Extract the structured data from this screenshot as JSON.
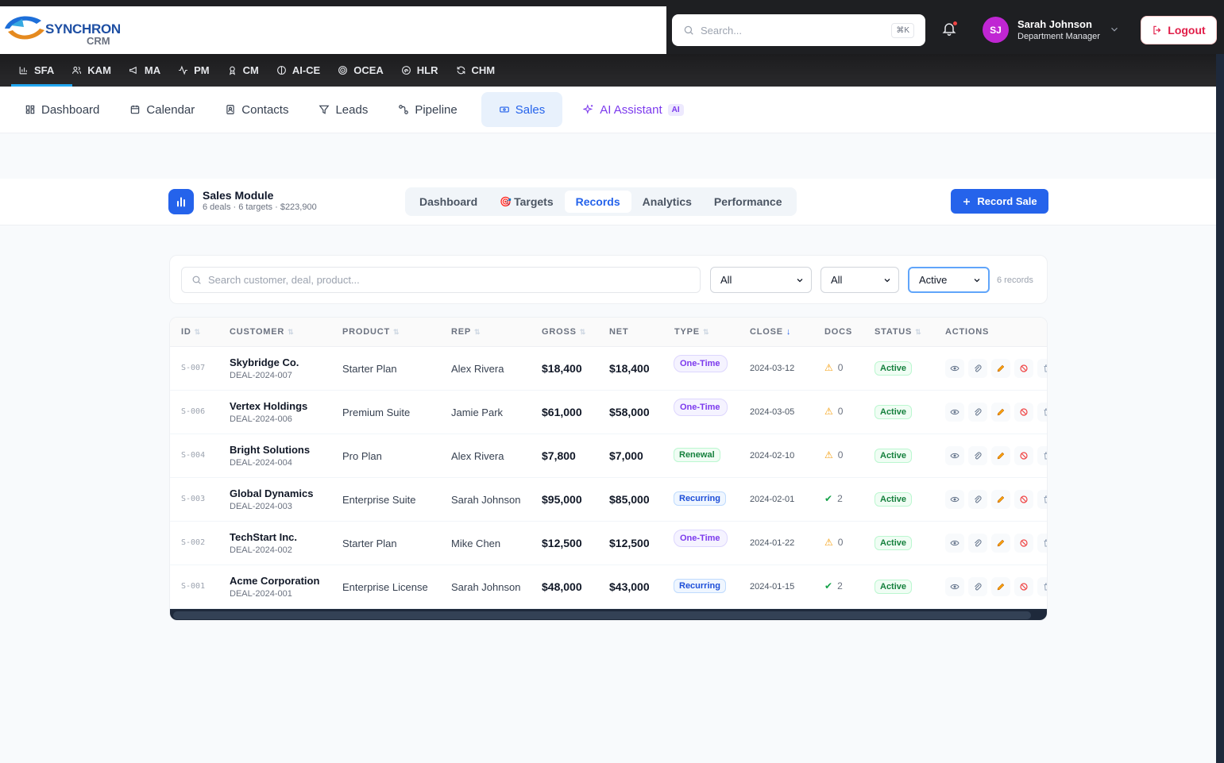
{
  "brand": {
    "name_top": "SYNCHRON",
    "name_bottom": "CRM"
  },
  "header": {
    "search_placeholder": "Search...",
    "search_shortcut": "⌘K",
    "user": {
      "initials": "SJ",
      "name": "Sarah Johnson",
      "role": "Department Manager"
    },
    "logout_label": "Logout"
  },
  "modules": [
    {
      "label": "SFA",
      "icon": "bar-chart-icon",
      "active": true
    },
    {
      "label": "KAM",
      "icon": "users-icon"
    },
    {
      "label": "MA",
      "icon": "megaphone-icon"
    },
    {
      "label": "PM",
      "icon": "activity-icon"
    },
    {
      "label": "CM",
      "icon": "award-icon"
    },
    {
      "label": "AI-CE",
      "icon": "brain-icon"
    },
    {
      "label": "OCEA",
      "icon": "target-icon"
    },
    {
      "label": "HLR",
      "icon": "fingerprint-icon"
    },
    {
      "label": "CHM",
      "icon": "refresh-icon"
    }
  ],
  "subnav": [
    {
      "label": "Dashboard",
      "icon": "grid-icon"
    },
    {
      "label": "Calendar",
      "icon": "calendar-icon"
    },
    {
      "label": "Contacts",
      "icon": "contact-icon"
    },
    {
      "label": "Leads",
      "icon": "filter-icon"
    },
    {
      "label": "Pipeline",
      "icon": "pipeline-icon"
    },
    {
      "label": "Sales",
      "icon": "ticket-icon",
      "active": true
    },
    {
      "label": "AI Assistant",
      "icon": "sparkles-icon",
      "badge": "AI"
    }
  ],
  "module": {
    "title": "Sales Module",
    "summary": "6 deals · 6 targets · $223,900",
    "tabs": [
      {
        "label": "Dashboard"
      },
      {
        "label": "Targets",
        "emoji": "🎯"
      },
      {
        "label": "Records",
        "active": true
      },
      {
        "label": "Analytics"
      },
      {
        "label": "Performance"
      }
    ],
    "record_button": "Record Sale"
  },
  "filters": {
    "search_placeholder": "Search customer, deal, product...",
    "select1": "All",
    "select2": "All",
    "select3": "Active",
    "count": "6 records"
  },
  "table": {
    "headers": [
      "ID",
      "CUSTOMER",
      "PRODUCT",
      "REP",
      "GROSS",
      "NET",
      "TYPE",
      "CLOSE",
      "DOCS",
      "STATUS",
      "ACTIONS"
    ],
    "rows": [
      {
        "id": "S-007",
        "customer": "Skybridge Co.",
        "deal": "DEAL-2024-007",
        "product": "Starter Plan",
        "rep": "Alex Rivera",
        "gross": "$18,400",
        "net": "$18,400",
        "type": "One-Time",
        "close": "2024-03-12",
        "docs_icon": "⚠",
        "docs": "0",
        "status": "Active"
      },
      {
        "id": "S-006",
        "customer": "Vertex Holdings",
        "deal": "DEAL-2024-006",
        "product": "Premium Suite",
        "rep": "Jamie Park",
        "gross": "$61,000",
        "net": "$58,000",
        "type": "One-Time",
        "close": "2024-03-05",
        "docs_icon": "⚠",
        "docs": "0",
        "status": "Active"
      },
      {
        "id": "S-004",
        "customer": "Bright Solutions",
        "deal": "DEAL-2024-004",
        "product": "Pro Plan",
        "rep": "Alex Rivera",
        "gross": "$7,800",
        "net": "$7,000",
        "type": "Renewal",
        "close": "2024-02-10",
        "docs_icon": "⚠",
        "docs": "0",
        "status": "Active"
      },
      {
        "id": "S-003",
        "customer": "Global Dynamics",
        "deal": "DEAL-2024-003",
        "product": "Enterprise Suite",
        "rep": "Sarah Johnson",
        "gross": "$95,000",
        "net": "$85,000",
        "type": "Recurring",
        "close": "2024-02-01",
        "docs_icon": "✔",
        "docs": "2",
        "status": "Active"
      },
      {
        "id": "S-002",
        "customer": "TechStart Inc.",
        "deal": "DEAL-2024-002",
        "product": "Starter Plan",
        "rep": "Mike Chen",
        "gross": "$12,500",
        "net": "$12,500",
        "type": "One-Time",
        "close": "2024-01-22",
        "docs_icon": "⚠",
        "docs": "0",
        "status": "Active"
      },
      {
        "id": "S-001",
        "customer": "Acme Corporation",
        "deal": "DEAL-2024-001",
        "product": "Enterprise License",
        "rep": "Sarah Johnson",
        "gross": "$48,000",
        "net": "$43,000",
        "type": "Recurring",
        "close": "2024-01-15",
        "docs_icon": "✔",
        "docs": "2",
        "status": "Active"
      }
    ]
  },
  "colors": {
    "primary": "#2563eb",
    "accent": "#7c3aed",
    "danger": "#e11d48",
    "success": "#15803d"
  }
}
